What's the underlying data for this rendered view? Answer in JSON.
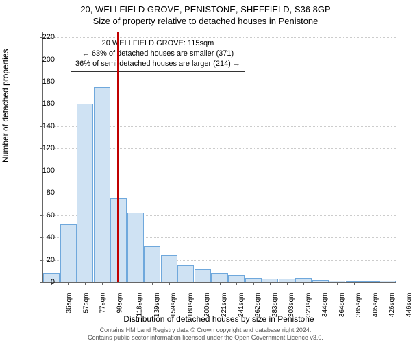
{
  "chart": {
    "type": "histogram",
    "title": "20, WELLFIELD GROVE, PENISTONE, SHEFFIELD, S36 8GP",
    "subtitle": "Size of property relative to detached houses in Penistone",
    "ylabel": "Number of detached properties",
    "xlabel": "Distribution of detached houses by size in Penistone",
    "title_fontsize": 13,
    "label_fontsize": 12,
    "tick_fontsize": 11,
    "background_color": "#ffffff",
    "grid_color": "#cccccc",
    "axis_color": "#666666",
    "bar_fill": "#cfe2f3",
    "bar_stroke": "#6fa8dc",
    "ylim": [
      0,
      225
    ],
    "ytick_step": 20,
    "categories": [
      "36sqm",
      "57sqm",
      "77sqm",
      "98sqm",
      "118sqm",
      "139sqm",
      "159sqm",
      "180sqm",
      "200sqm",
      "221sqm",
      "241sqm",
      "262sqm",
      "283sqm",
      "303sqm",
      "323sqm",
      "344sqm",
      "364sqm",
      "385sqm",
      "405sqm",
      "426sqm",
      "446sqm"
    ],
    "values": [
      8,
      52,
      160,
      175,
      75,
      62,
      32,
      24,
      15,
      12,
      8,
      6,
      4,
      3,
      3,
      4,
      2,
      1,
      0,
      0,
      1
    ],
    "marker": {
      "position_index": 3.9,
      "color": "#c00000"
    },
    "info_box": {
      "line1": "20 WELLFIELD GROVE: 115sqm",
      "line2": "← 63% of detached houses are smaller (371)",
      "line3": "36% of semi-detached houses are larger (214) →"
    },
    "footer": {
      "line1": "Contains HM Land Registry data © Crown copyright and database right 2024.",
      "line2": "Contains public sector information licensed under the Open Government Licence v3.0."
    }
  }
}
